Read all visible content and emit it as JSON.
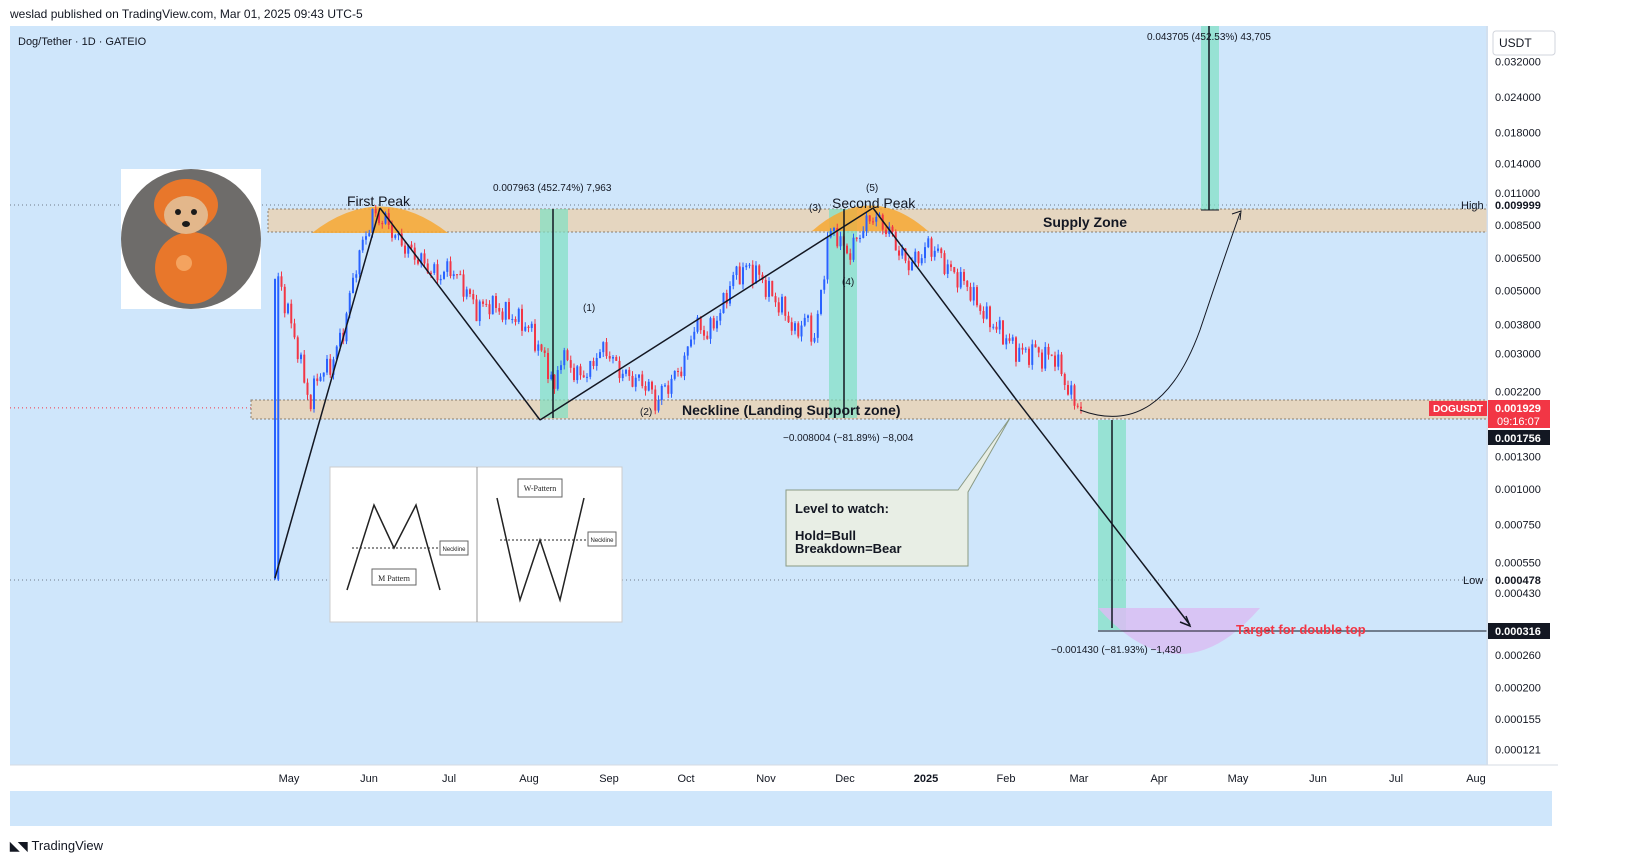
{
  "header": {
    "published": "weslad published on TradingView.com, Mar 01, 2025 09:43 UTC-5"
  },
  "footer": {
    "brand": "TradingView",
    "icon": "tradingview-logo-icon"
  },
  "colors": {
    "background": "#cfe6fb",
    "up": "#2962ff",
    "down": "#f23645",
    "zone": "#e5d6c0",
    "peak": "#f7a833",
    "measure": "#7fe0c3",
    "target": "#d9bdf2",
    "price_label": "#f23645"
  },
  "chart_data": {
    "type": "candlestick",
    "symbol": "Dog/Tether · 1D · GATEIO",
    "currency": "USDT",
    "scale": "log",
    "x_ticks": [
      "May",
      "Jun",
      "Jul",
      "Aug",
      "Sep",
      "Oct",
      "Nov",
      "Dec",
      "2025",
      "Feb",
      "Mar",
      "Apr",
      "May",
      "Jun",
      "Jul",
      "Aug"
    ],
    "y_ticks": [
      "0.032000",
      "0.024000",
      "0.018000",
      "0.014000",
      "0.011000",
      "0.008500",
      "0.006500",
      "0.005000",
      "0.003800",
      "0.003000",
      "0.002200",
      "0.001300",
      "0.001000",
      "0.000750",
      "0.000550",
      "0.000430",
      "0.000260",
      "0.000200",
      "0.000155",
      "0.000121"
    ],
    "price_labels": {
      "high_label": "High",
      "high_value": "0.009999",
      "low_label": "Low",
      "low_value": "0.000478",
      "symbol_tag": "DOGUSDT",
      "last_price": "0.001929",
      "countdown": "09:16:07",
      "neckline_price": "0.001756",
      "target_price": "0.000316"
    },
    "annotations": {
      "first_peak": "First Peak",
      "second_peak": "Second Peak",
      "supply_zone": "Supply Zone",
      "neckline": "Neckline (Landing Support zone)",
      "wave_1": "(1)",
      "wave_2": "(2)",
      "wave_3": "(3)",
      "wave_4": "(4)",
      "wave_5": "(5)",
      "measure_up": "0.007963 (452.74%) 7,963",
      "measure_down": "−0.008004 (−81.89%) −8,004",
      "measure_top": "0.043705 (452.53%) 43,705",
      "measure_target": "−0.001430 (−81.93%) −1,430",
      "target_text": "Target for double top",
      "callout_title": "Level to watch:",
      "callout_line1": "Hold=Bull",
      "callout_line2": "Breakdown=Bear",
      "inset_m_label": "M Pattern",
      "inset_w_label": "W-Pattern",
      "inset_neckline": "Neckline"
    },
    "price_path": [
      [
        0,
        0.00048
      ],
      [
        1,
        0.0055
      ],
      [
        4,
        0.0042
      ],
      [
        7,
        0.0031
      ],
      [
        9,
        0.0024
      ],
      [
        11,
        0.002
      ],
      [
        13,
        0.0025
      ],
      [
        17,
        0.0027
      ],
      [
        21,
        0.0036
      ],
      [
        25,
        0.0062
      ],
      [
        30,
        0.0092
      ],
      [
        34,
        0.0088
      ],
      [
        38,
        0.0075
      ],
      [
        44,
        0.0065
      ],
      [
        50,
        0.0056
      ],
      [
        54,
        0.006
      ],
      [
        58,
        0.0052
      ],
      [
        62,
        0.0043
      ],
      [
        66,
        0.0045
      ],
      [
        70,
        0.0042
      ],
      [
        74,
        0.004
      ],
      [
        78,
        0.0037
      ],
      [
        81,
        0.0032
      ],
      [
        84,
        0.0027
      ],
      [
        86,
        0.0022
      ],
      [
        88,
        0.003
      ],
      [
        90,
        0.0028
      ],
      [
        93,
        0.0025
      ],
      [
        97,
        0.0026
      ],
      [
        99,
        0.003
      ],
      [
        102,
        0.0031
      ],
      [
        105,
        0.0027
      ],
      [
        108,
        0.0025
      ],
      [
        112,
        0.0024
      ],
      [
        115,
        0.0023
      ],
      [
        117,
        0.002
      ],
      [
        119,
        0.0022
      ],
      [
        122,
        0.0024
      ],
      [
        126,
        0.0028
      ],
      [
        129,
        0.0038
      ],
      [
        133,
        0.0035
      ],
      [
        137,
        0.0042
      ],
      [
        141,
        0.0056
      ],
      [
        145,
        0.006
      ],
      [
        148,
        0.0058
      ],
      [
        151,
        0.0052
      ],
      [
        154,
        0.0046
      ],
      [
        157,
        0.0042
      ],
      [
        160,
        0.0035
      ],
      [
        163,
        0.004
      ],
      [
        166,
        0.0034
      ],
      [
        168,
        0.0048
      ],
      [
        170,
        0.0075
      ],
      [
        172,
        0.0082
      ],
      [
        175,
        0.007
      ],
      [
        177,
        0.0068
      ],
      [
        180,
        0.008
      ],
      [
        184,
        0.0092
      ],
      [
        187,
        0.0085
      ],
      [
        190,
        0.0078
      ],
      [
        192,
        0.0068
      ],
      [
        195,
        0.0062
      ],
      [
        198,
        0.0065
      ],
      [
        201,
        0.0072
      ],
      [
        204,
        0.0068
      ],
      [
        207,
        0.006
      ],
      [
        210,
        0.0056
      ],
      [
        213,
        0.0052
      ],
      [
        216,
        0.0045
      ],
      [
        219,
        0.004
      ],
      [
        222,
        0.0037
      ],
      [
        225,
        0.0034
      ],
      [
        228,
        0.0031
      ],
      [
        231,
        0.003
      ],
      [
        234,
        0.0031
      ],
      [
        236,
        0.0029
      ],
      [
        239,
        0.003
      ],
      [
        242,
        0.0026
      ],
      [
        244,
        0.0022
      ],
      [
        247,
        0.002
      ],
      [
        248,
        0.0019
      ]
    ]
  }
}
